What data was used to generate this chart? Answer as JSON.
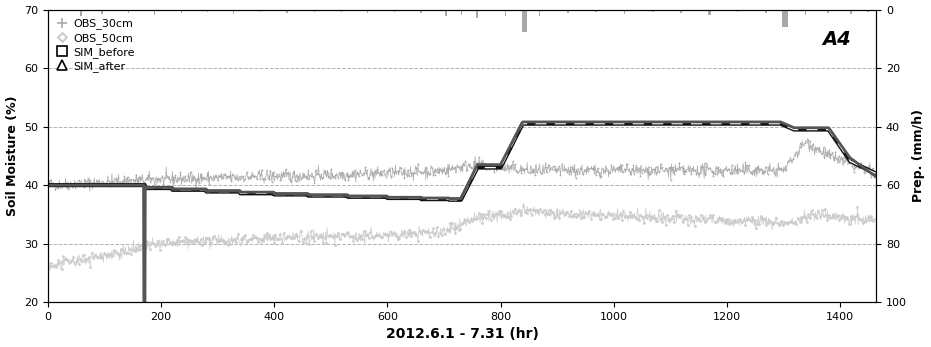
{
  "title_station": "A4",
  "xlabel": "2012.6.1 - 7.31 (hr)",
  "ylabel_left": "Soil Moisture (%)",
  "ylabel_right": "Prep. (mm/h)",
  "xlim": [
    0,
    1464
  ],
  "ylim_left": [
    20,
    70
  ],
  "ylim_right": [
    0,
    100
  ],
  "yticks_left": [
    20,
    30,
    40,
    50,
    60,
    70
  ],
  "yticks_right": [
    0,
    20,
    40,
    60,
    80,
    100
  ],
  "xticks": [
    0,
    200,
    400,
    600,
    800,
    1000,
    1200,
    1400
  ],
  "grid_color": "#aaaaaa",
  "obs30_color": "#aaaaaa",
  "obs50_color": "#cccccc",
  "sim_before_color": "#111111",
  "sim_after_color": "#555555",
  "precip_color": "#999999",
  "background": "#ffffff"
}
